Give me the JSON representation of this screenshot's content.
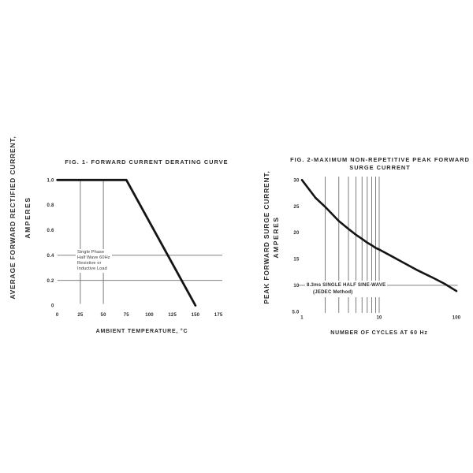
{
  "page": {
    "background": "#ffffff",
    "text_color": "#2b2b2b",
    "grid_color": "#6f6f6f",
    "curve_color": "#141414"
  },
  "figures": [
    {
      "title": "FIG. 1- FORWARD CURRENT DERATING CURVE",
      "title_line2": "",
      "ylabel_line1": "AVERAGE FORWARD RECTIFIED CURRENT,",
      "ylabel_line2": "AMPERES",
      "xlabel": "AMBIENT TEMPERATURE, °C",
      "annotation_lines": [
        "Single Phase",
        "Half Wave 60Hz",
        "Resistive or",
        "Inductive Load"
      ]
    },
    {
      "title": "FIG. 2-MAXIMUM NON-REPETITIVE PEAK FORWARD",
      "title_line2": "SURGE CURRENT",
      "ylabel_line1": "PEAK FORWARD SURGE CURRENT,",
      "ylabel_line2": "AMPERES",
      "xlabel": "NUMBER OF CYCLES AT 60 Hz",
      "annotation_lines": [
        "8.3ms SINGLE HALF SINE-WAVE",
        "(JEDEC Method)"
      ]
    }
  ],
  "chart_data": [
    {
      "type": "line",
      "title": "FIG. 1- FORWARD CURRENT DERATING CURVE",
      "xlabel": "AMBIENT TEMPERATURE, °C",
      "ylabel": "AVERAGE FORWARD RECTIFIED CURRENT, AMPERES",
      "x_scale": "linear",
      "y_scale": "linear",
      "xlim": [
        0,
        175
      ],
      "ylim": [
        0,
        1.0
      ],
      "x_ticks": [
        0,
        25,
        50,
        75,
        100,
        125,
        150,
        175
      ],
      "x_tick_labels": [
        "0",
        "25",
        "50",
        "75",
        "100",
        "125",
        "150",
        "175"
      ],
      "y_ticks": [
        1.0,
        0.8,
        0.6,
        0.4,
        0.2,
        0
      ],
      "y_tick_labels": [
        "1.0",
        "0.8",
        "0.6",
        "0.4",
        "0.2",
        "0"
      ],
      "gridlines": {
        "vertical_x": [
          25,
          50
        ],
        "horizontal_y": [
          0.4,
          0.2
        ]
      },
      "legend": false,
      "annotation": "Single Phase Half Wave 60Hz Resistive or Inductive Load",
      "series": [
        {
          "name": "Forward current derating",
          "points": [
            [
              0,
              1.0
            ],
            [
              75,
              1.0
            ],
            [
              150,
              0
            ]
          ]
        }
      ]
    },
    {
      "type": "line",
      "title": "FIG. 2-MAXIMUM NON-REPETITIVE PEAK FORWARD SURGE CURRENT",
      "xlabel": "NUMBER OF CYCLES AT 60 Hz",
      "ylabel": "PEAK FORWARD SURGE CURRENT, AMPERES",
      "x_scale": "log",
      "y_scale": "linear",
      "xlim": [
        1,
        100
      ],
      "ylim": [
        5,
        30
      ],
      "x_ticks": [
        1,
        10,
        100
      ],
      "x_tick_labels": [
        "1",
        "10",
        "100"
      ],
      "y_ticks": [
        30,
        25,
        20,
        15,
        10,
        5
      ],
      "y_tick_labels": [
        "30",
        "25",
        "20",
        "15",
        "10",
        "5.0"
      ],
      "gridlines": {
        "vertical_x": [
          2,
          3,
          4,
          5,
          6,
          7,
          8,
          9,
          10
        ],
        "horizontal_y": [
          10
        ]
      },
      "legend": false,
      "annotation": "8.3ms SINGLE HALF SINE-WAVE (JEDEC Method)",
      "series": [
        {
          "name": "Peak forward surge current",
          "points": [
            [
              1,
              30
            ],
            [
              1.5,
              26.6
            ],
            [
              2,
              24.9
            ],
            [
              3,
              22.2
            ],
            [
              4,
              20.7
            ],
            [
              5,
              19.6
            ],
            [
              6,
              18.8
            ],
            [
              7,
              18.1
            ],
            [
              8,
              17.6
            ],
            [
              9,
              17.1
            ],
            [
              10,
              16.8
            ],
            [
              15,
              15.4
            ],
            [
              20,
              14.4
            ],
            [
              30,
              13.0
            ],
            [
              40,
              12.1
            ],
            [
              50,
              11.4
            ],
            [
              70,
              10.3
            ],
            [
              100,
              8.9
            ]
          ]
        }
      ]
    }
  ]
}
